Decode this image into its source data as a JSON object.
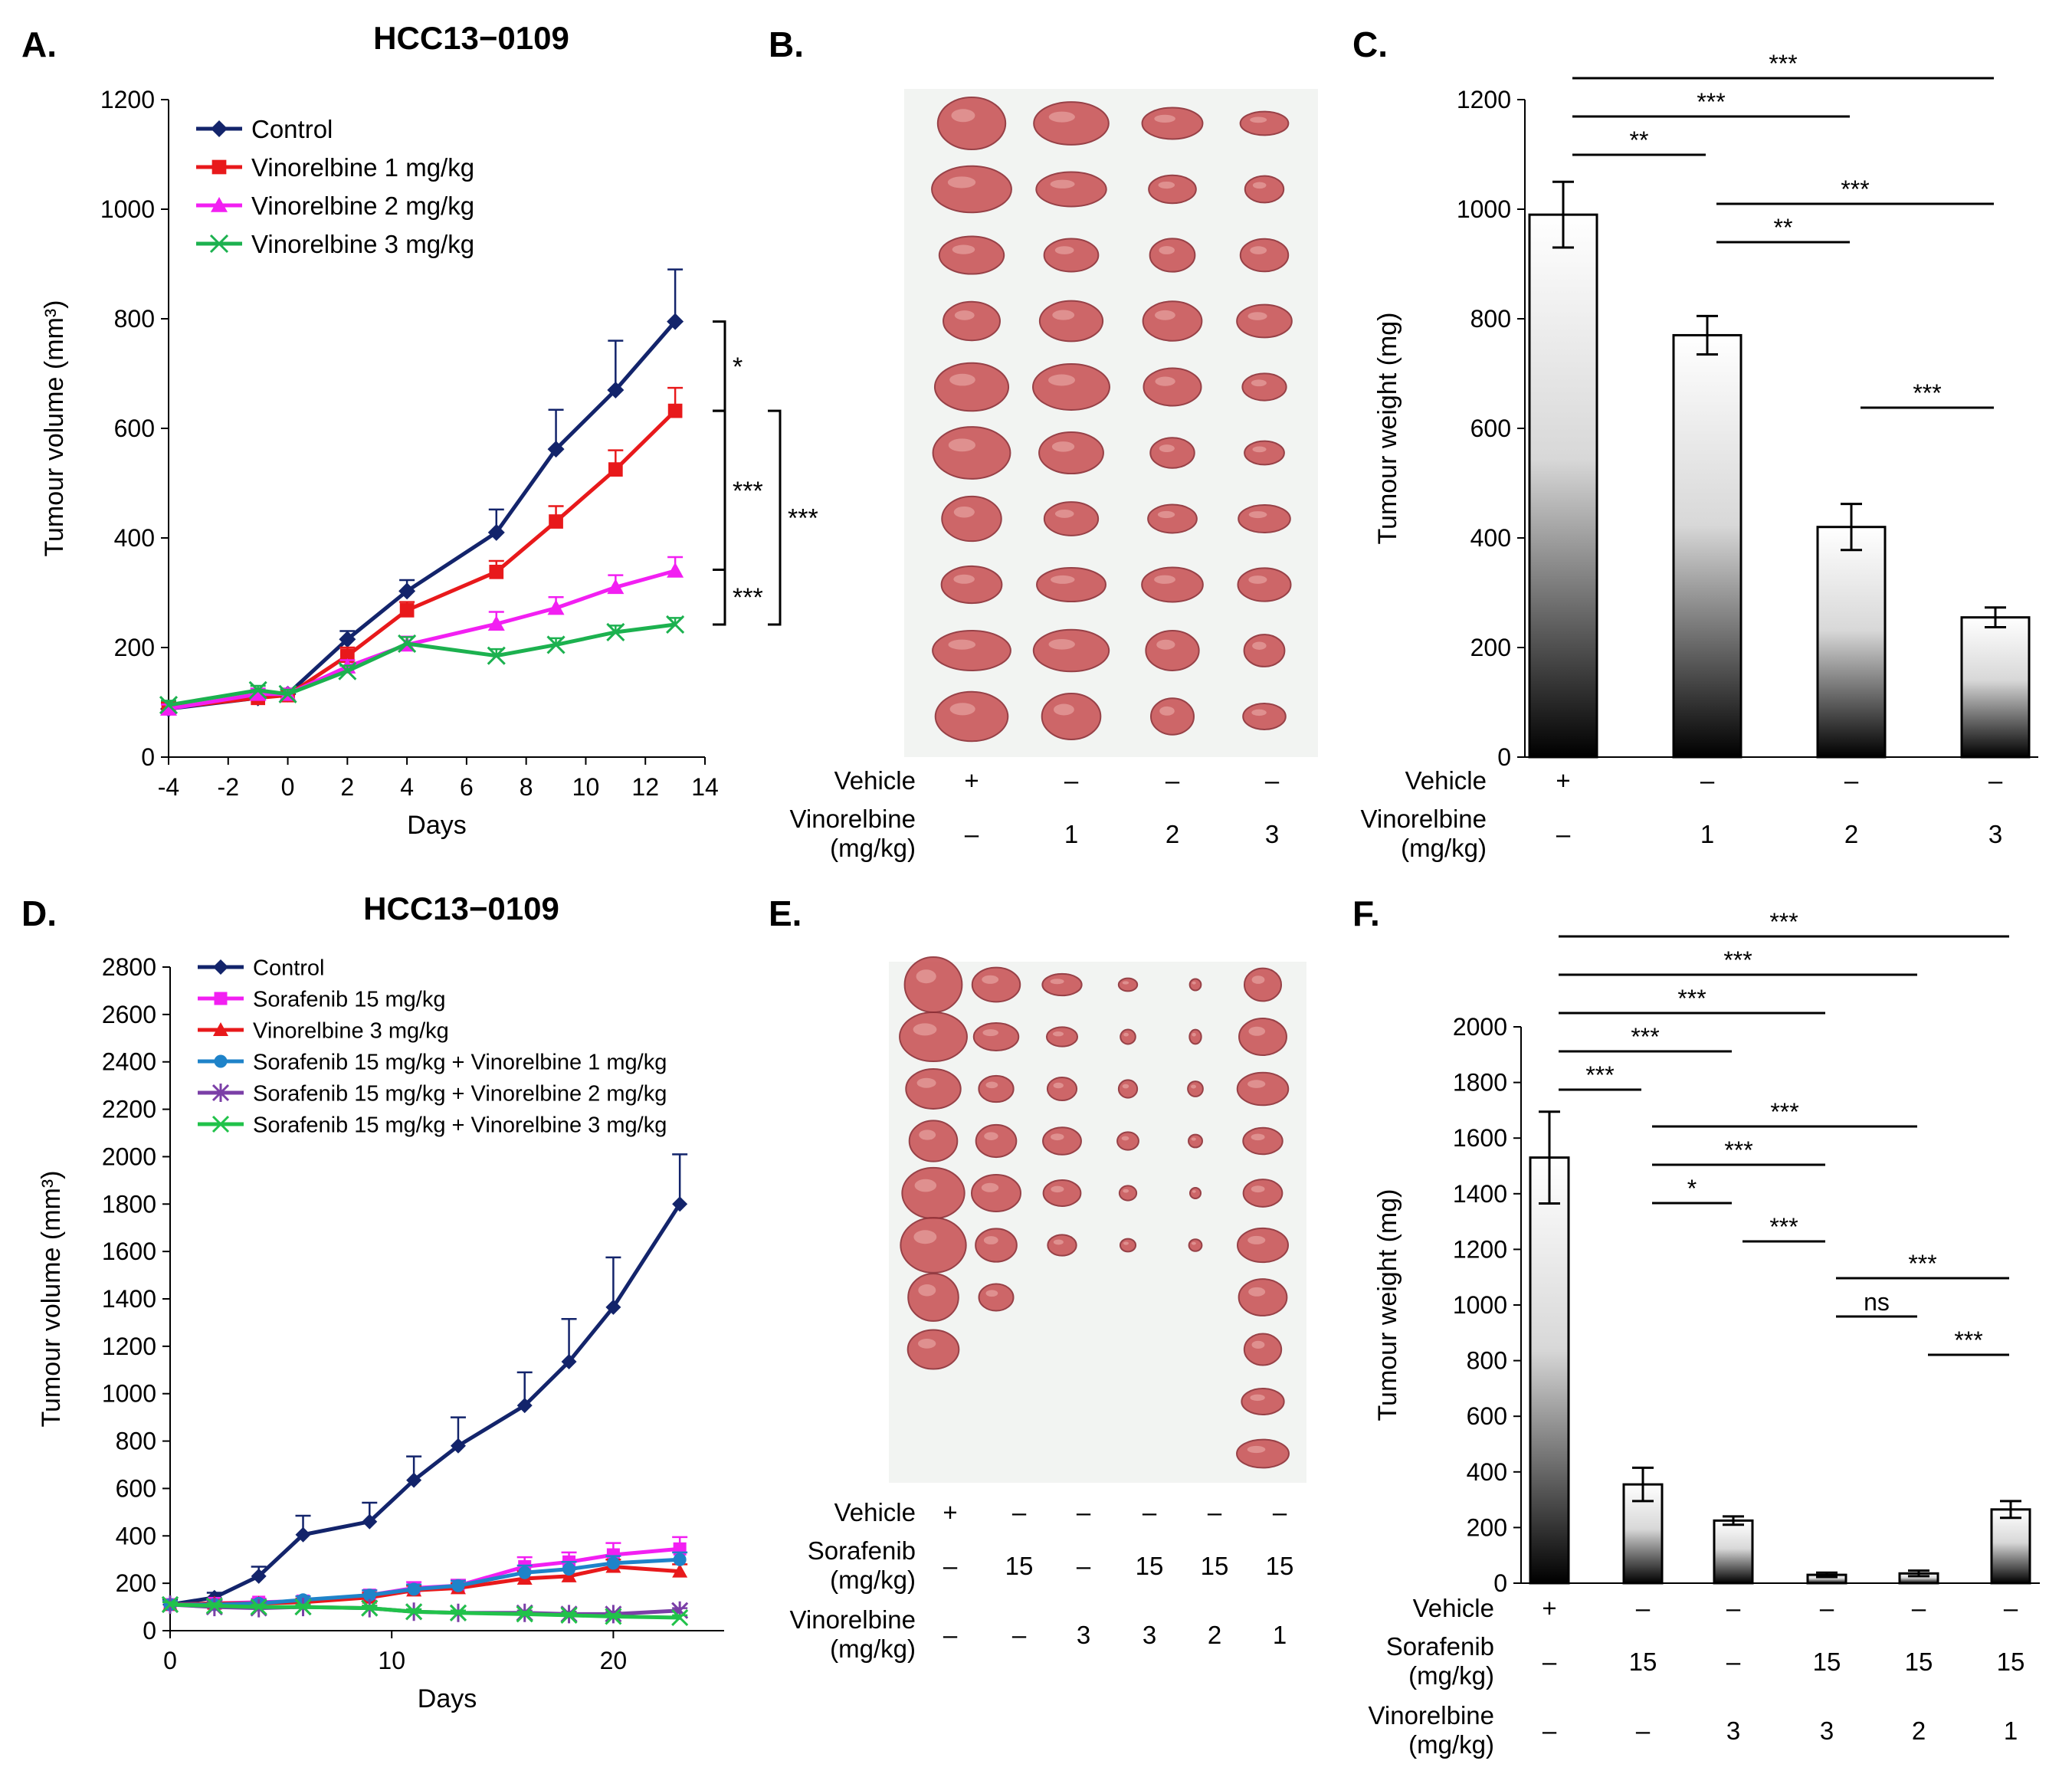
{
  "panels": {
    "A": {
      "letter": "A.",
      "title": "HCC13−0109"
    },
    "B": {
      "letter": "B."
    },
    "C": {
      "letter": "C."
    },
    "D": {
      "letter": "D.",
      "title": "HCC13−0109"
    },
    "E": {
      "letter": "E."
    },
    "F": {
      "letter": "F."
    }
  },
  "colors": {
    "control": "#13246b",
    "vin1": "#e8191b",
    "vin2": "#f21ff2",
    "vin3": "#1cb14f",
    "sorafenib": "#f21ff2",
    "sor_vin1": "#1f83c9",
    "sor_vin2": "#7b3fa7",
    "sor_vin3": "#21c24a",
    "tissue": "#c9575a",
    "photo_bg": "#f2f4f2"
  },
  "photo_B": {
    "columns": [
      10,
      10,
      10,
      10
    ]
  },
  "photo_E": {
    "columns": [
      8,
      7,
      6,
      6,
      6,
      10
    ]
  },
  "treatment_B": {
    "rows": [
      {
        "label": "Vehicle",
        "values": [
          "+",
          "–",
          "–",
          "–"
        ]
      },
      {
        "label": "Vinorelbine",
        "label2": "(mg/kg)",
        "values": [
          "–",
          "1",
          "2",
          "3"
        ]
      }
    ]
  },
  "treatment_C": {
    "rows": [
      {
        "label": "Vehicle",
        "values": [
          "+",
          "–",
          "–",
          "–"
        ]
      },
      {
        "label": "Vinorelbine",
        "label2": "(mg/kg)",
        "values": [
          "–",
          "1",
          "2",
          "3"
        ]
      }
    ]
  },
  "treatment_E": {
    "rows": [
      {
        "label": "Vehicle",
        "values": [
          "+",
          "–",
          "–",
          "–",
          "–",
          "–"
        ]
      },
      {
        "label": "Sorafenib",
        "label2": "(mg/kg)",
        "values": [
          "–",
          "15",
          "–",
          "15",
          "15",
          "15"
        ]
      },
      {
        "label": "Vinorelbine",
        "label2": "(mg/kg)",
        "values": [
          "–",
          "–",
          "3",
          "3",
          "2",
          "1"
        ]
      }
    ]
  },
  "treatment_F": {
    "rows": [
      {
        "label": "Vehicle",
        "values": [
          "+",
          "–",
          "–",
          "–",
          "–",
          "–"
        ]
      },
      {
        "label": "Sorafenib",
        "label2": "(mg/kg)",
        "values": [
          "–",
          "15",
          "–",
          "15",
          "15",
          "15"
        ]
      },
      {
        "label": "Vinorelbine",
        "label2": "(mg/kg)",
        "values": [
          "–",
          "–",
          "3",
          "3",
          "2",
          "1"
        ]
      }
    ]
  },
  "chart_data": [
    {
      "id": "A",
      "type": "line",
      "title": "HCC13−0109",
      "xlabel": "Days",
      "ylabel": "Tumour volume (mm³)",
      "xlim": [
        -4,
        14
      ],
      "ylim": [
        0,
        1200
      ],
      "xticks": [
        -4,
        -2,
        0,
        2,
        4,
        6,
        8,
        10,
        12,
        14
      ],
      "yticks": [
        0,
        200,
        400,
        600,
        800,
        1000,
        1200
      ],
      "x": [
        -4,
        -1,
        0,
        2,
        4,
        7,
        9,
        11,
        13
      ],
      "series": [
        {
          "name": "Control",
          "marker": "diamond",
          "color": "#13246b",
          "values": [
            88,
            108,
            115,
            215,
            303,
            410,
            562,
            670,
            795
          ],
          "errors": [
            10,
            10,
            10,
            15,
            20,
            42,
            72,
            90,
            95
          ]
        },
        {
          "name": "Vinorelbine 1 mg/kg",
          "marker": "square",
          "color": "#e8191b",
          "values": [
            90,
            108,
            113,
            185,
            268,
            338,
            430,
            525,
            632
          ],
          "errors": [
            10,
            10,
            10,
            15,
            15,
            20,
            28,
            35,
            42
          ]
        },
        {
          "name": "Vinorelbine 2 mg/kg",
          "marker": "triangle",
          "color": "#f21ff2",
          "values": [
            88,
            115,
            115,
            165,
            205,
            243,
            272,
            310,
            340
          ],
          "errors": [
            8,
            10,
            10,
            12,
            15,
            22,
            20,
            22,
            25
          ]
        },
        {
          "name": "Vinorelbine 3 mg/kg",
          "marker": "x",
          "color": "#1cb14f",
          "values": [
            95,
            122,
            115,
            157,
            207,
            185,
            205,
            228,
            242
          ],
          "errors": [
            8,
            8,
            8,
            10,
            12,
            12,
            12,
            12,
            12
          ]
        }
      ],
      "significance": [
        "*",
        "***",
        "***",
        "***"
      ]
    },
    {
      "id": "C",
      "type": "bar",
      "ylabel": "Tumour weight (mg)",
      "ylim": [
        0,
        1200
      ],
      "yticks": [
        0,
        200,
        400,
        600,
        800,
        1000,
        1200
      ],
      "values": [
        990,
        770,
        420,
        255
      ],
      "errors": [
        60,
        35,
        42,
        18
      ],
      "significance": [
        {
          "from": 0,
          "to": 3,
          "label": "***"
        },
        {
          "from": 0,
          "to": 2,
          "label": "***"
        },
        {
          "from": 0,
          "to": 1,
          "label": "**"
        },
        {
          "from": 1,
          "to": 3,
          "label": "***"
        },
        {
          "from": 1,
          "to": 2,
          "label": "**"
        },
        {
          "from": 2,
          "to": 3,
          "label": "***"
        }
      ]
    },
    {
      "id": "D",
      "type": "line",
      "title": "HCC13−0109",
      "xlabel": "Days",
      "ylabel": "Tumour volume (mm³)",
      "xlim": [
        0,
        25
      ],
      "ylim": [
        0,
        2800
      ],
      "xticks": [
        0,
        10,
        20
      ],
      "yticks": [
        0,
        200,
        400,
        600,
        800,
        1000,
        1200,
        1400,
        1600,
        1800,
        2000,
        2200,
        2400,
        2600,
        2800
      ],
      "x": [
        0,
        2,
        4,
        6,
        9,
        11,
        13,
        16,
        18,
        20,
        23
      ],
      "series": [
        {
          "name": "Control",
          "marker": "diamond",
          "color": "#13246b",
          "values": [
            110,
            140,
            230,
            405,
            460,
            635,
            780,
            950,
            1135,
            1365,
            1800
          ],
          "errors": [
            20,
            20,
            40,
            80,
            80,
            100,
            120,
            140,
            180,
            210,
            210
          ]
        },
        {
          "name": "Sorafenib 15 mg/kg",
          "marker": "square",
          "color": "#f21ff2",
          "values": [
            110,
            115,
            120,
            125,
            150,
            180,
            190,
            270,
            290,
            320,
            345
          ],
          "errors": [
            15,
            15,
            15,
            20,
            20,
            25,
            25,
            40,
            40,
            50,
            50
          ]
        },
        {
          "name": "Vinorelbine 3 mg/kg",
          "marker": "triangle",
          "color": "#e8191b",
          "values": [
            110,
            115,
            115,
            120,
            140,
            170,
            180,
            220,
            230,
            270,
            250
          ],
          "errors": [
            15,
            15,
            15,
            15,
            20,
            20,
            20,
            30,
            30,
            30,
            30
          ]
        },
        {
          "name": "Sorafenib 15 mg/kg + Vinorelbine 1 mg/kg",
          "marker": "circle",
          "color": "#1f83c9",
          "values": [
            110,
            110,
            115,
            130,
            150,
            175,
            190,
            245,
            260,
            285,
            300
          ],
          "errors": [
            15,
            15,
            15,
            15,
            20,
            20,
            20,
            30,
            30,
            30,
            30
          ]
        },
        {
          "name": "Sorafenib 15 mg/kg + Vinorelbine 2 mg/kg",
          "marker": "asterisk",
          "color": "#7b3fa7",
          "values": [
            110,
            100,
            95,
            100,
            95,
            80,
            75,
            75,
            70,
            70,
            85
          ],
          "errors": [
            10,
            10,
            10,
            10,
            10,
            10,
            10,
            10,
            10,
            10,
            10
          ]
        },
        {
          "name": "Sorafenib 15 mg/kg + Vinorelbine 3 mg/kg",
          "marker": "x",
          "color": "#21c24a",
          "values": [
            110,
            105,
            100,
            100,
            95,
            80,
            75,
            70,
            65,
            60,
            55
          ],
          "errors": [
            10,
            10,
            10,
            10,
            10,
            10,
            10,
            10,
            10,
            10,
            10
          ]
        }
      ]
    },
    {
      "id": "F",
      "type": "bar",
      "ylabel": "Tumour weight (mg)",
      "ylim": [
        0,
        2000
      ],
      "yticks": [
        0,
        200,
        400,
        600,
        800,
        1000,
        1200,
        1400,
        1600,
        1800,
        2000
      ],
      "values": [
        1530,
        355,
        225,
        30,
        35,
        265
      ],
      "errors": [
        165,
        60,
        15,
        8,
        10,
        30
      ],
      "significance": [
        {
          "from": 0,
          "to": 5,
          "label": "***"
        },
        {
          "from": 0,
          "to": 4,
          "label": "***"
        },
        {
          "from": 0,
          "to": 3,
          "label": "***"
        },
        {
          "from": 0,
          "to": 2,
          "label": "***"
        },
        {
          "from": 0,
          "to": 1,
          "label": "***"
        },
        {
          "from": 1,
          "to": 4,
          "label": "***"
        },
        {
          "from": 1,
          "to": 3,
          "label": "***"
        },
        {
          "from": 1,
          "to": 2,
          "label": "*"
        },
        {
          "from": 2,
          "to": 3,
          "label": "***"
        },
        {
          "from": 3,
          "to": 5,
          "label": "***"
        },
        {
          "from": 3,
          "to": 4,
          "label": "ns"
        },
        {
          "from": 4,
          "to": 5,
          "label": "***"
        }
      ]
    }
  ]
}
